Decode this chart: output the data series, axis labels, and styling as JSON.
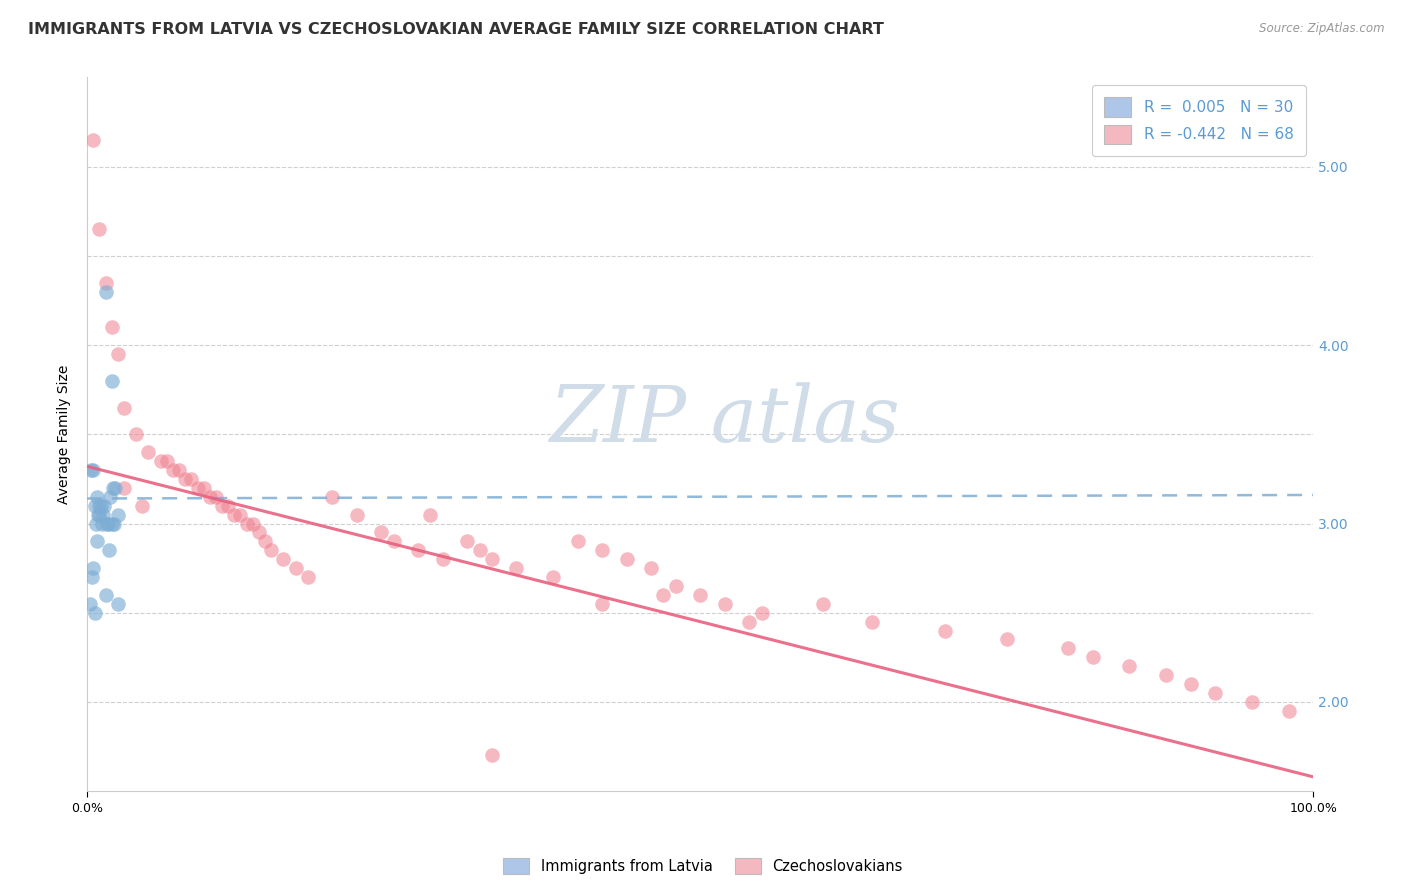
{
  "title": "IMMIGRANTS FROM LATVIA VS CZECHOSLOVAKIAN AVERAGE FAMILY SIZE CORRELATION CHART",
  "source_text": "Source: ZipAtlas.com",
  "xlabel": "",
  "ylabel": "Average Family Size",
  "xlim": [
    0,
    1.0
  ],
  "ylim": [
    1.5,
    5.5
  ],
  "xtick_labels": [
    "0.0%",
    "100.0%"
  ],
  "right_yticks": [
    2.0,
    3.0,
    4.0,
    5.0
  ],
  "legend_r1": "R =  0.005   N = 30",
  "legend_r2": "R = -0.442   N = 68",
  "legend_color1": "#aec6e8",
  "legend_color2": "#f4b8c1",
  "scatter_color1": "#7dadd4",
  "scatter_color2": "#f08090",
  "line_color1": "#7dadd4",
  "line_color2": "#e8607e",
  "background_color": "#ffffff",
  "grid_color": "#d0d0d0",
  "watermark_color": "#d0dde8",
  "blue_line_y0": 3.14,
  "blue_line_y1": 3.16,
  "pink_line_y0": 3.32,
  "pink_line_y1": 1.58,
  "blue_points_x": [
    0.005,
    0.008,
    0.009,
    0.01,
    0.012,
    0.013,
    0.014,
    0.015,
    0.016,
    0.017,
    0.018,
    0.019,
    0.02,
    0.021,
    0.022,
    0.003,
    0.004,
    0.006,
    0.007,
    0.011,
    0.002,
    0.023,
    0.025,
    0.008,
    0.005,
    0.01,
    0.015,
    0.02,
    0.006,
    0.025
  ],
  "blue_points_y": [
    3.3,
    3.15,
    3.05,
    3.1,
    3.0,
    3.05,
    3.1,
    4.3,
    3.0,
    3.0,
    2.85,
    3.15,
    3.8,
    3.2,
    3.0,
    3.3,
    2.7,
    3.1,
    3.0,
    3.1,
    2.55,
    3.2,
    3.05,
    2.9,
    2.75,
    3.05,
    2.6,
    3.0,
    2.5,
    2.55
  ],
  "pink_points_x": [
    0.005,
    0.01,
    0.015,
    0.02,
    0.025,
    0.03,
    0.04,
    0.05,
    0.06,
    0.065,
    0.07,
    0.075,
    0.08,
    0.085,
    0.09,
    0.095,
    0.1,
    0.105,
    0.11,
    0.115,
    0.12,
    0.125,
    0.13,
    0.135,
    0.14,
    0.145,
    0.15,
    0.16,
    0.17,
    0.18,
    0.2,
    0.22,
    0.24,
    0.25,
    0.27,
    0.29,
    0.31,
    0.33,
    0.35,
    0.38,
    0.4,
    0.42,
    0.44,
    0.46,
    0.48,
    0.5,
    0.52,
    0.54,
    0.03,
    0.045,
    0.28,
    0.32,
    0.47,
    0.55,
    0.6,
    0.64,
    0.7,
    0.75,
    0.8,
    0.82,
    0.85,
    0.88,
    0.9,
    0.92,
    0.95,
    0.98,
    0.33,
    0.42
  ],
  "pink_points_y": [
    5.15,
    4.65,
    4.35,
    4.1,
    3.95,
    3.65,
    3.5,
    3.4,
    3.35,
    3.35,
    3.3,
    3.3,
    3.25,
    3.25,
    3.2,
    3.2,
    3.15,
    3.15,
    3.1,
    3.1,
    3.05,
    3.05,
    3.0,
    3.0,
    2.95,
    2.9,
    2.85,
    2.8,
    2.75,
    2.7,
    3.15,
    3.05,
    2.95,
    2.9,
    2.85,
    2.8,
    2.9,
    2.8,
    2.75,
    2.7,
    2.9,
    2.85,
    2.8,
    2.75,
    2.65,
    2.6,
    2.55,
    2.45,
    3.2,
    3.1,
    3.05,
    2.85,
    2.6,
    2.5,
    2.55,
    2.45,
    2.4,
    2.35,
    2.3,
    2.25,
    2.2,
    2.15,
    2.1,
    2.05,
    2.0,
    1.95,
    1.7,
    2.55
  ],
  "title_fontsize": 11.5,
  "axis_fontsize": 10,
  "tick_fontsize": 9
}
